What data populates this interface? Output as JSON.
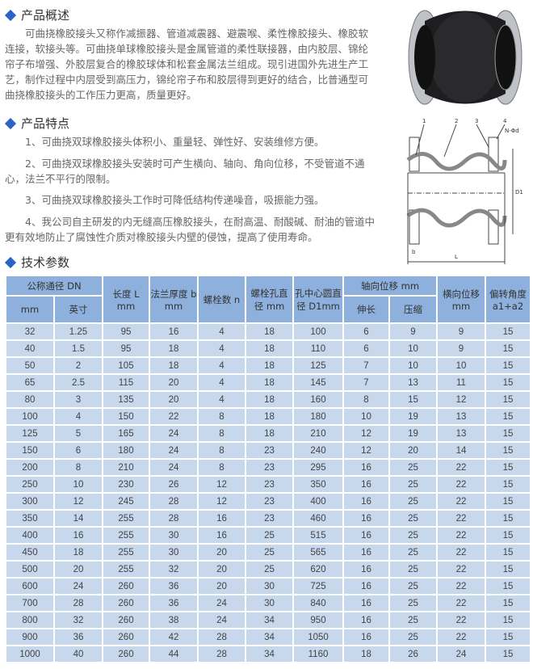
{
  "sections": {
    "overview": {
      "title": "产品概述",
      "text": "可曲挠橡胶接头又称作减振器、管道减震器、避震喉、柔性橡胶接头、橡胶软连接，软接头等。可曲挠单球橡胶接头是金属管道的柔性联接器，由内胶层、锦纶帘子布增强、外胶层复合的橡胶球体和松套金属法兰组成。现引进国外先进生产工艺，制作过程中内层受到高压力，锦纶帘子布和胶层得到更好的结合，比普通型可曲挠橡胶接头的工作压力更高，质量更好。"
    },
    "features": {
      "title": "产品特点",
      "items": [
        "1、可曲挠双球橡胶接头体积小、重量轻、弹性好、安装维修方便。",
        "2、可曲挠双球橡胶接头安装时可产生横向、轴向、角向位移，不受管道不通心，法兰不平行的限制。",
        "3、可曲挠双球橡胶接头工作时可降低结构传递噪音，吸振能力强。",
        "4、我公司自主研发的内无缝高压橡胶接头，在耐高温、耐酸碱、耐油的管道中更有效地防止了腐蚀性介质对橡胶接头内壁的侵蚀，提高了使用寿命。"
      ]
    },
    "specs": {
      "title": "技术参数"
    }
  },
  "diagram": {
    "labels": [
      "1",
      "2",
      "3",
      "4",
      "N-Φd",
      "D1",
      "b",
      "L"
    ]
  },
  "table": {
    "headers": {
      "dn": "公称通径 DN",
      "mm": "mm",
      "inch": "英寸",
      "length": "长度 L mm",
      "flange": "法兰厚度 b mm",
      "bolts": "螺栓数 n",
      "hole": "螺栓孔直径 mm",
      "circle": "孔中心圆直径 D1mm",
      "axial": "轴向位移 mm",
      "ext": "伸长",
      "comp": "压缩",
      "lateral": "横向位移 mm",
      "angle": "偏转角度 a1+a2"
    },
    "rows": [
      [
        "32",
        "1.25",
        "95",
        "16",
        "4",
        "18",
        "100",
        "6",
        "9",
        "9",
        "15"
      ],
      [
        "40",
        "1.5",
        "95",
        "18",
        "4",
        "18",
        "110",
        "6",
        "10",
        "9",
        "15"
      ],
      [
        "50",
        "2",
        "105",
        "18",
        "4",
        "18",
        "125",
        "7",
        "10",
        "10",
        "15"
      ],
      [
        "65",
        "2.5",
        "115",
        "20",
        "4",
        "18",
        "145",
        "7",
        "13",
        "11",
        "15"
      ],
      [
        "80",
        "3",
        "135",
        "20",
        "4",
        "18",
        "160",
        "8",
        "15",
        "12",
        "15"
      ],
      [
        "100",
        "4",
        "150",
        "22",
        "8",
        "18",
        "180",
        "10",
        "19",
        "13",
        "15"
      ],
      [
        "125",
        "5",
        "165",
        "24",
        "8",
        "18",
        "210",
        "12",
        "19",
        "13",
        "15"
      ],
      [
        "150",
        "6",
        "180",
        "24",
        "8",
        "23",
        "240",
        "12",
        "20",
        "14",
        "15"
      ],
      [
        "200",
        "8",
        "210",
        "24",
        "8",
        "23",
        "295",
        "16",
        "25",
        "22",
        "15"
      ],
      [
        "250",
        "10",
        "230",
        "26",
        "12",
        "23",
        "350",
        "16",
        "25",
        "22",
        "15"
      ],
      [
        "300",
        "12",
        "245",
        "28",
        "12",
        "23",
        "400",
        "16",
        "25",
        "22",
        "15"
      ],
      [
        "350",
        "14",
        "255",
        "28",
        "16",
        "23",
        "460",
        "16",
        "25",
        "22",
        "15"
      ],
      [
        "400",
        "16",
        "255",
        "30",
        "16",
        "25",
        "515",
        "16",
        "25",
        "22",
        "15"
      ],
      [
        "450",
        "18",
        "255",
        "30",
        "20",
        "25",
        "565",
        "16",
        "25",
        "22",
        "15"
      ],
      [
        "500",
        "20",
        "255",
        "32",
        "20",
        "25",
        "620",
        "16",
        "25",
        "22",
        "15"
      ],
      [
        "600",
        "24",
        "260",
        "36",
        "20",
        "30",
        "725",
        "16",
        "25",
        "22",
        "15"
      ],
      [
        "700",
        "28",
        "260",
        "36",
        "24",
        "30",
        "840",
        "16",
        "25",
        "22",
        "15"
      ],
      [
        "800",
        "32",
        "260",
        "38",
        "24",
        "34",
        "950",
        "16",
        "25",
        "22",
        "15"
      ],
      [
        "900",
        "36",
        "260",
        "42",
        "28",
        "34",
        "1050",
        "16",
        "25",
        "22",
        "15"
      ],
      [
        "1000",
        "40",
        "260",
        "44",
        "28",
        "34",
        "1160",
        "18",
        "26",
        "24",
        "15"
      ]
    ]
  },
  "colors": {
    "accent": "#2a64c4",
    "header": "#8db0dc",
    "cell": "#c7d7ec"
  }
}
